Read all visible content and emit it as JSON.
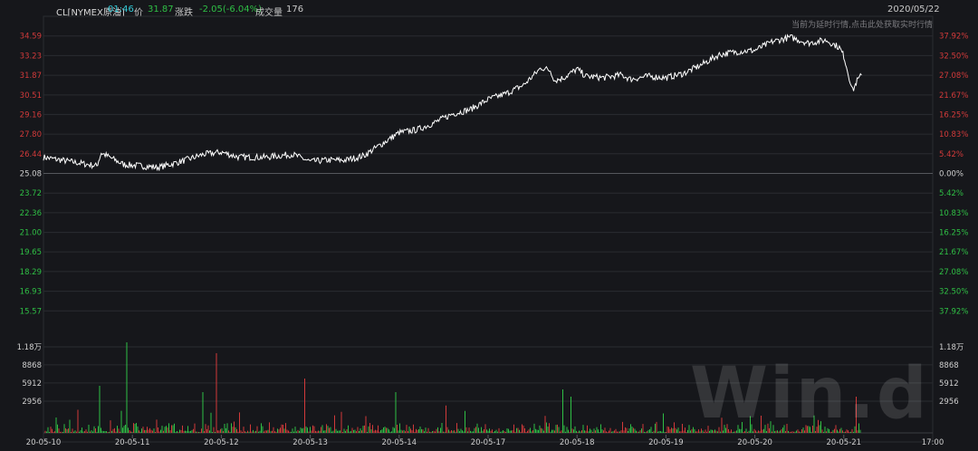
{
  "header": {
    "symbol": "CL[NYMEX原油]",
    "time": "01:46",
    "price_label": "价",
    "price": "31.87",
    "change_label": "涨跌",
    "change": "-2.05(-6.04%)",
    "volume_label": "成交量",
    "volume": "176",
    "date": "2020/05/22",
    "notice": "当前为延时行情,点击此处获取实时行情"
  },
  "colors": {
    "background": "#16171b",
    "line": "#ffffff",
    "up": "#d23a3a",
    "down": "#2fbf45",
    "grid": "#2a2c31"
  },
  "watermark": "Win.d",
  "chart_data": {
    "type": "line",
    "base_price": 25.08,
    "ylim": [
      14.21,
      35.95
    ],
    "price_ticks": [
      {
        "label": "34.59",
        "value": 34.59,
        "pct": "37.92%"
      },
      {
        "label": "33.23",
        "value": 33.23,
        "pct": "32.50%"
      },
      {
        "label": "31.87",
        "value": 31.87,
        "pct": "27.08%"
      },
      {
        "label": "30.51",
        "value": 30.51,
        "pct": "21.67%"
      },
      {
        "label": "29.16",
        "value": 29.16,
        "pct": "16.25%"
      },
      {
        "label": "27.80",
        "value": 27.8,
        "pct": "10.83%"
      },
      {
        "label": "26.44",
        "value": 26.44,
        "pct": "5.42%"
      },
      {
        "label": "25.08",
        "value": 25.08,
        "pct": "0.00%"
      },
      {
        "label": "23.72",
        "value": 23.72,
        "pct": "5.42%"
      },
      {
        "label": "22.36",
        "value": 22.36,
        "pct": "10.83%"
      },
      {
        "label": "21.00",
        "value": 21.0,
        "pct": "16.25%"
      },
      {
        "label": "19.65",
        "value": 19.65,
        "pct": "21.67%"
      },
      {
        "label": "18.29",
        "value": 18.29,
        "pct": "27.08%"
      },
      {
        "label": "16.93",
        "value": 16.93,
        "pct": "32.50%"
      },
      {
        "label": "15.57",
        "value": 15.57,
        "pct": "37.92%"
      }
    ],
    "volume_ticks": [
      {
        "label": "1.18万",
        "value": 11800
      },
      {
        "label": "8868",
        "value": 8868
      },
      {
        "label": "5912",
        "value": 5912
      },
      {
        "label": "2956",
        "value": 2956
      }
    ],
    "x_labels": [
      "20-05-10",
      "20-05-11",
      "20-05-12",
      "20-05-13",
      "20-05-14",
      "20-05-17",
      "20-05-18",
      "20-05-19",
      "20-05-20",
      "20-05-21",
      "17:00"
    ],
    "series_keypoints": [
      {
        "x": 0.0,
        "y": 26.2
      },
      {
        "x": 0.3,
        "y": 25.9
      },
      {
        "x": 0.6,
        "y": 25.6
      },
      {
        "x": 0.65,
        "y": 26.5
      },
      {
        "x": 0.9,
        "y": 25.7
      },
      {
        "x": 1.3,
        "y": 25.5
      },
      {
        "x": 1.6,
        "y": 26.0
      },
      {
        "x": 1.8,
        "y": 26.4
      },
      {
        "x": 2.0,
        "y": 26.55
      },
      {
        "x": 2.2,
        "y": 26.2
      },
      {
        "x": 2.5,
        "y": 26.2
      },
      {
        "x": 2.8,
        "y": 26.4
      },
      {
        "x": 3.0,
        "y": 25.9
      },
      {
        "x": 3.2,
        "y": 26.0
      },
      {
        "x": 3.4,
        "y": 26.0
      },
      {
        "x": 3.6,
        "y": 26.3
      },
      {
        "x": 3.8,
        "y": 27.1
      },
      {
        "x": 4.0,
        "y": 27.9
      },
      {
        "x": 4.2,
        "y": 28.1
      },
      {
        "x": 4.4,
        "y": 28.6
      },
      {
        "x": 4.6,
        "y": 29.2
      },
      {
        "x": 4.8,
        "y": 29.5
      },
      {
        "x": 5.0,
        "y": 30.2
      },
      {
        "x": 5.2,
        "y": 30.6
      },
      {
        "x": 5.4,
        "y": 31.2
      },
      {
        "x": 5.6,
        "y": 32.4
      },
      {
        "x": 5.7,
        "y": 32.2
      },
      {
        "x": 5.75,
        "y": 31.5
      },
      {
        "x": 5.85,
        "y": 31.7
      },
      {
        "x": 6.0,
        "y": 32.3
      },
      {
        "x": 6.1,
        "y": 31.8
      },
      {
        "x": 6.3,
        "y": 31.7
      },
      {
        "x": 6.5,
        "y": 31.9
      },
      {
        "x": 6.6,
        "y": 31.6
      },
      {
        "x": 6.8,
        "y": 31.8
      },
      {
        "x": 7.0,
        "y": 31.7
      },
      {
        "x": 7.2,
        "y": 32.0
      },
      {
        "x": 7.4,
        "y": 32.6
      },
      {
        "x": 7.6,
        "y": 33.3
      },
      {
        "x": 7.8,
        "y": 33.5
      },
      {
        "x": 8.0,
        "y": 33.6
      },
      {
        "x": 8.2,
        "y": 34.2
      },
      {
        "x": 8.4,
        "y": 34.5
      },
      {
        "x": 8.6,
        "y": 34.1
      },
      {
        "x": 8.8,
        "y": 34.3
      },
      {
        "x": 8.95,
        "y": 33.8
      },
      {
        "x": 9.0,
        "y": 33.2
      },
      {
        "x": 9.05,
        "y": 32.0
      },
      {
        "x": 9.1,
        "y": 30.8
      },
      {
        "x": 9.15,
        "y": 31.5
      },
      {
        "x": 9.2,
        "y": 31.87
      }
    ]
  }
}
